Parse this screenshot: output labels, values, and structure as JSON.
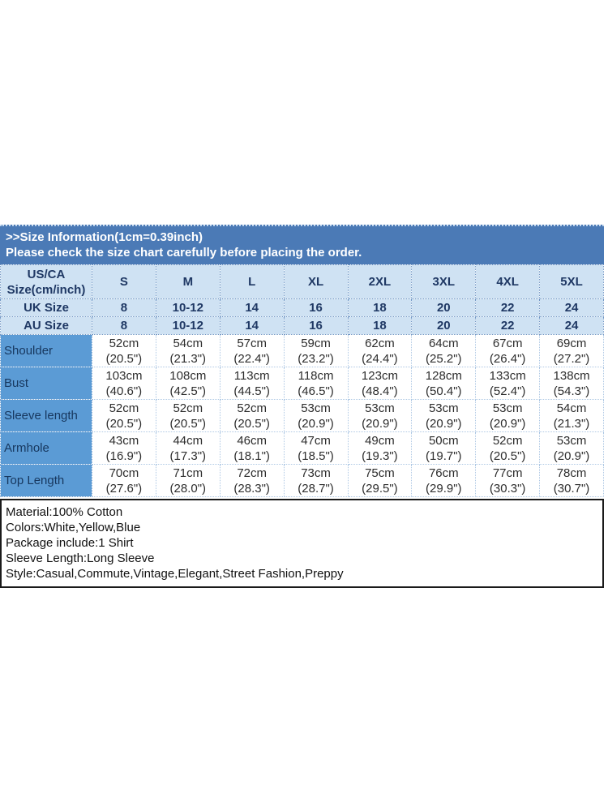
{
  "header": {
    "line1": ">>Size Information(1cm=0.39inch)",
    "line2": "Please check the size chart carefully before placing the order."
  },
  "size_table": {
    "corner_line1": "US/CA",
    "corner_line2": "Size(cm/inch)",
    "size_columns": [
      "S",
      "M",
      "L",
      "XL",
      "2XL",
      "3XL",
      "4XL",
      "5XL"
    ],
    "region_rows": [
      {
        "label": "UK Size",
        "values": [
          "8",
          "10-12",
          "14",
          "16",
          "18",
          "20",
          "22",
          "24"
        ]
      },
      {
        "label": "AU Size",
        "values": [
          "8",
          "10-12",
          "14",
          "16",
          "18",
          "20",
          "22",
          "24"
        ]
      }
    ],
    "measure_rows": [
      {
        "label": "Shoulder",
        "cm": [
          "52cm",
          "54cm",
          "57cm",
          "59cm",
          "62cm",
          "64cm",
          "67cm",
          "69cm"
        ],
        "in": [
          "(20.5\")",
          "(21.3\")",
          "(22.4\")",
          "(23.2\")",
          "(24.4\")",
          "(25.2\")",
          "(26.4\")",
          "(27.2\")"
        ]
      },
      {
        "label": "Bust",
        "cm": [
          "103cm",
          "108cm",
          "113cm",
          "118cm",
          "123cm",
          "128cm",
          "133cm",
          "138cm"
        ],
        "in": [
          "(40.6\")",
          "(42.5\")",
          "(44.5\")",
          "(46.5\")",
          "(48.4\")",
          "(50.4\")",
          "(52.4\")",
          "(54.3\")"
        ]
      },
      {
        "label": "Sleeve length",
        "cm": [
          "52cm",
          "52cm",
          "52cm",
          "53cm",
          "53cm",
          "53cm",
          "53cm",
          "54cm"
        ],
        "in": [
          "(20.5\")",
          "(20.5\")",
          "(20.5\")",
          "(20.9\")",
          "(20.9\")",
          "(20.9\")",
          "(20.9\")",
          "(21.3\")"
        ]
      },
      {
        "label": "Armhole",
        "cm": [
          "43cm",
          "44cm",
          "46cm",
          "47cm",
          "49cm",
          "50cm",
          "52cm",
          "53cm"
        ],
        "in": [
          "(16.9\")",
          "(17.3\")",
          "(18.1\")",
          "(18.5\")",
          "(19.3\")",
          "(19.7\")",
          "(20.5\")",
          "(20.9\")"
        ]
      },
      {
        "label": "Top Length",
        "cm": [
          "70cm",
          "71cm",
          "72cm",
          "73cm",
          "75cm",
          "76cm",
          "77cm",
          "78cm"
        ],
        "in": [
          "(27.6\")",
          "(28.0\")",
          "(28.3\")",
          "(28.7\")",
          "(29.5\")",
          "(29.9\")",
          "(30.3\")",
          "(30.7\")"
        ]
      }
    ]
  },
  "details": {
    "lines": [
      "Material:100% Cotton",
      "Colors:White,Yellow,Blue",
      "Package include:1 Shirt",
      "Sleeve Length:Long Sleeve",
      "Style:Casual,Commute,Vintage,Elegant,Street Fashion,Preppy"
    ]
  },
  "colors": {
    "band_background": "#4b7ab6",
    "band_text": "#ffffff",
    "table_header_background": "#cfe2f3",
    "table_header_text": "#1f3864",
    "row_label_background": "#5b9bd5",
    "row_label_text": "#17375e",
    "cell_text": "#2d2d2d",
    "details_border": "#1a1a1a"
  },
  "chart_data": {
    "type": "table",
    "title": ">>Size Information(1cm=0.39inch)",
    "subtitle": "Please check the size chart carefully before placing the order.",
    "columns": [
      "US/CA Size(cm/inch)",
      "S",
      "M",
      "L",
      "XL",
      "2XL",
      "3XL",
      "4XL",
      "5XL"
    ],
    "rows": [
      [
        "UK Size",
        "8",
        "10-12",
        "14",
        "16",
        "18",
        "20",
        "22",
        "24"
      ],
      [
        "AU Size",
        "8",
        "10-12",
        "14",
        "16",
        "18",
        "20",
        "22",
        "24"
      ],
      [
        "Shoulder",
        "52cm (20.5\")",
        "54cm (21.3\")",
        "57cm (22.4\")",
        "59cm (23.2\")",
        "62cm (24.4\")",
        "64cm (25.2\")",
        "67cm (26.4\")",
        "69cm (27.2\")"
      ],
      [
        "Bust",
        "103cm (40.6\")",
        "108cm (42.5\")",
        "113cm (44.5\")",
        "118cm (46.5\")",
        "123cm (48.4\")",
        "128cm (50.4\")",
        "133cm (52.4\")",
        "138cm (54.3\")"
      ],
      [
        "Sleeve length",
        "52cm (20.5\")",
        "52cm (20.5\")",
        "52cm (20.5\")",
        "53cm (20.9\")",
        "53cm (20.9\")",
        "53cm (20.9\")",
        "53cm (20.9\")",
        "54cm (21.3\")"
      ],
      [
        "Armhole",
        "43cm (16.9\")",
        "44cm (17.3\")",
        "46cm (18.1\")",
        "47cm (18.5\")",
        "49cm (19.3\")",
        "50cm (19.7\")",
        "52cm (20.5\")",
        "53cm (20.9\")"
      ],
      [
        "Top Length",
        "70cm (27.6\")",
        "71cm (28.0\")",
        "72cm (28.3\")",
        "73cm (28.7\")",
        "75cm (29.5\")",
        "76cm (29.9\")",
        "77cm (30.3\")",
        "78cm (30.7\")"
      ]
    ],
    "footnotes": [
      "Material:100% Cotton",
      "Colors:White,Yellow,Blue",
      "Package include:1 Shirt",
      "Sleeve Length:Long Sleeve",
      "Style:Casual,Commute,Vintage,Elegant,Street Fashion,Preppy"
    ],
    "legend_position": "none",
    "grid": "dotted"
  }
}
